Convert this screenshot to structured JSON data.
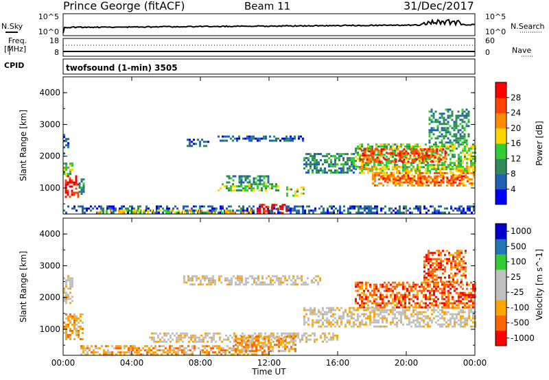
{
  "header": {
    "station": "Prince George (fitACF)",
    "beam": "Beam 11",
    "date": "31/Dec/2017"
  },
  "strips": {
    "nsky_label": "N.Sky",
    "nsky_top": "10^5",
    "nsky_bottom": "10^0",
    "nsearch_label": "N.Search",
    "nsearch_top": "10^5",
    "nsearch_bottom": "10^0",
    "freq_label_1": "Freq.",
    "freq_label_2": "[MHz]",
    "freq_top": "18",
    "freq_bottom": "8",
    "nave_label": "Nave",
    "nave_top": "60",
    "nave_bottom": "0",
    "cpid_label": "CPID",
    "cpid_value": "twofsound (1-min) 3505"
  },
  "colors": {
    "power": [
      "#0000ff",
      "#1f5fb4",
      "#2e8b57",
      "#32cd32",
      "#ffd700",
      "#ff8c00",
      "#ff4500",
      "#ff0000"
    ],
    "velocity": [
      "#ff0000",
      "#ff6600",
      "#ffa500",
      "#c0c0c0",
      "#c0c0c0",
      "#32cd32",
      "#1f77b4",
      "#0000cd"
    ],
    "ground_scatter": "#bebebe"
  },
  "chart_data": [
    {
      "type": "heatmap",
      "title": "Power",
      "xlabel": "",
      "ylabel": "Slant Range [km]",
      "x_ticks": [
        "00:00",
        "04:00",
        "08:00",
        "12:00",
        "16:00",
        "20:00",
        "00:00"
      ],
      "y_ticks": [
        "1000",
        "2000",
        "3000",
        "4000"
      ],
      "ylim": [
        180,
        4500
      ],
      "colorbar_label": "Power [dB]",
      "colorbar_ticks": [
        "4",
        "8",
        "12",
        "16",
        "20",
        "24",
        "28"
      ],
      "colorbar_range": [
        0,
        32
      ],
      "regions": [
        {
          "t0": 0.0,
          "t1": 0.3,
          "r0": 2100,
          "r1": 2700,
          "level": 1
        },
        {
          "t0": 0.0,
          "t1": 0.6,
          "r0": 1400,
          "r1": 1800,
          "level": 3
        },
        {
          "t0": 0.1,
          "t1": 0.9,
          "r0": 700,
          "r1": 1400,
          "level": 7
        },
        {
          "t0": 0.9,
          "t1": 1.2,
          "r0": 800,
          "r1": 1300,
          "level": 2
        },
        {
          "t0": 0.0,
          "t1": 23.9,
          "r0": 200,
          "r1": 450,
          "level": 1
        },
        {
          "t0": 2.0,
          "t1": 11.0,
          "r0": 200,
          "r1": 320,
          "level": 4
        },
        {
          "t0": 7.2,
          "t1": 8.5,
          "r0": 2350,
          "r1": 2550,
          "level": 1
        },
        {
          "t0": 9.0,
          "t1": 14.0,
          "r0": 2500,
          "r1": 2650,
          "level": 1
        },
        {
          "t0": 9.5,
          "t1": 12.0,
          "r0": 1200,
          "r1": 1400,
          "level": 2
        },
        {
          "t0": 9.0,
          "t1": 12.5,
          "r0": 950,
          "r1": 1150,
          "level": 3
        },
        {
          "t0": 11.3,
          "t1": 13.0,
          "r0": 220,
          "r1": 500,
          "level": 7
        },
        {
          "t0": 13.0,
          "t1": 14.0,
          "r0": 750,
          "r1": 1050,
          "level": 3
        },
        {
          "t0": 14.0,
          "t1": 17.0,
          "r0": 1500,
          "r1": 2100,
          "level": 2
        },
        {
          "t0": 17.0,
          "t1": 24.0,
          "r0": 1600,
          "r1": 2400,
          "level": 3
        },
        {
          "t0": 17.3,
          "t1": 22.3,
          "r0": 1850,
          "r1": 2250,
          "level": 6
        },
        {
          "t0": 17.0,
          "t1": 24.0,
          "r0": 1450,
          "r1": 1700,
          "level": 4
        },
        {
          "t0": 18.0,
          "t1": 24.0,
          "r0": 1100,
          "r1": 1500,
          "level": 5
        },
        {
          "t0": 18.5,
          "t1": 23.5,
          "r0": 1150,
          "r1": 1400,
          "level": 6
        },
        {
          "t0": 21.3,
          "t1": 23.7,
          "r0": 2400,
          "r1": 3500,
          "level": 2
        }
      ]
    },
    {
      "type": "heatmap",
      "title": "Velocity",
      "xlabel": "Time UT",
      "ylabel": "Slant Range [km]",
      "x_ticks": [
        "00:00",
        "04:00",
        "08:00",
        "12:00",
        "16:00",
        "20:00",
        "00:00"
      ],
      "y_ticks": [
        "1000",
        "2000",
        "3000",
        "4000"
      ],
      "ylim": [
        180,
        4500
      ],
      "colorbar_label": "Velocity [m s^-1]",
      "colorbar_ticks": [
        "1000",
        "500",
        "100",
        "25",
        "-25",
        "-100",
        "-500",
        "-1000"
      ],
      "regions": [
        {
          "t0": 0.0,
          "t1": 0.5,
          "r0": 1800,
          "r1": 2700,
          "level": 3
        },
        {
          "t0": 0.0,
          "t1": 1.2,
          "r0": 700,
          "r1": 1500,
          "level": 2
        },
        {
          "t0": 1.0,
          "t1": 12.0,
          "r0": 200,
          "r1": 500,
          "level": 2
        },
        {
          "t0": 5.0,
          "t1": 16.0,
          "r0": 600,
          "r1": 900,
          "level": 3
        },
        {
          "t0": 10.0,
          "t1": 13.5,
          "r0": 300,
          "r1": 800,
          "level": 2
        },
        {
          "t0": 7.0,
          "t1": 15.0,
          "r0": 2400,
          "r1": 2700,
          "level": 3
        },
        {
          "t0": 14.0,
          "t1": 24.0,
          "r0": 1100,
          "r1": 1700,
          "level": 3
        },
        {
          "t0": 17.0,
          "t1": 24.0,
          "r0": 1700,
          "r1": 2500,
          "level": 1
        },
        {
          "t0": 21.0,
          "t1": 23.5,
          "r0": 2500,
          "r1": 3500,
          "level": 1
        }
      ]
    }
  ]
}
